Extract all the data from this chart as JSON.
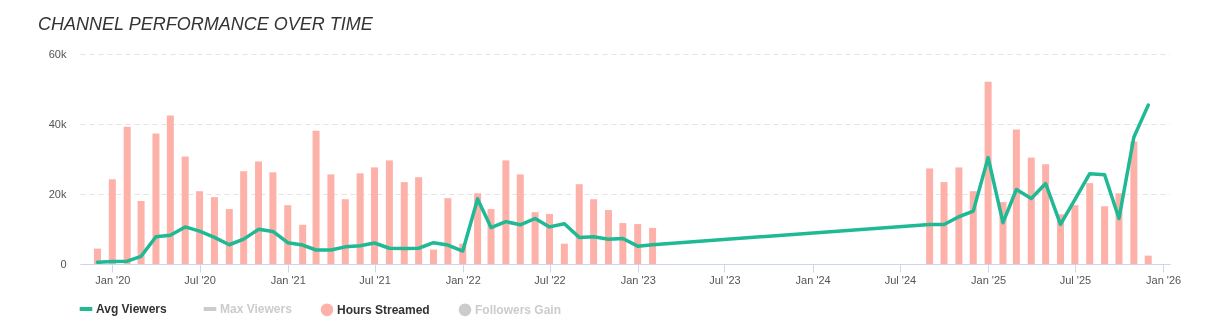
{
  "chart_data": {
    "type": "bar",
    "title": "CHANNEL PERFORMANCE OVER TIME",
    "x": [
      "2019-12",
      "2020-01",
      "2020-02",
      "2020-03",
      "2020-04",
      "2020-05",
      "2020-06",
      "2020-07",
      "2020-08",
      "2020-09",
      "2020-10",
      "2020-11",
      "2020-12",
      "2021-01",
      "2021-02",
      "2021-03",
      "2021-04",
      "2021-05",
      "2021-06",
      "2021-07",
      "2021-08",
      "2021-09",
      "2021-10",
      "2021-11",
      "2021-12",
      "2022-01",
      "2022-02",
      "2022-03",
      "2022-04",
      "2022-05",
      "2022-06",
      "2022-07",
      "2022-08",
      "2022-09",
      "2022-10",
      "2022-11",
      "2022-12",
      "2023-01",
      "2023-02",
      "2024-09",
      "2024-10",
      "2024-11",
      "2024-12",
      "2025-01",
      "2025-02",
      "2025-03",
      "2025-04",
      "2025-05",
      "2025-06",
      "2025-07",
      "2025-08",
      "2025-09",
      "2025-10",
      "2025-11",
      "2025-12"
    ],
    "series": [
      {
        "name": "Avg Viewers",
        "type": "line",
        "color": "#1fb994",
        "values": [
          500,
          700,
          800,
          2200,
          7800,
          8200,
          10600,
          9400,
          7600,
          5500,
          7100,
          9900,
          9300,
          6100,
          5400,
          4000,
          4000,
          4900,
          5200,
          6000,
          4500,
          4400,
          4500,
          6100,
          5400,
          3700,
          18600,
          10400,
          12100,
          11200,
          13000,
          10600,
          11500,
          7600,
          7800,
          7100,
          7300,
          5100,
          5500,
          11300,
          11300,
          13500,
          15100,
          30400,
          11800,
          21300,
          18700,
          23000,
          11300,
          18400,
          25800,
          25500,
          13000,
          36200,
          45400
        ]
      },
      {
        "name": "Max Viewers",
        "type": "line",
        "color": "#cccccc",
        "values": [
          null,
          null,
          null,
          null,
          null,
          null,
          null,
          null,
          null,
          null,
          null,
          null,
          null,
          null,
          null,
          null,
          null,
          null,
          null,
          null,
          null,
          null,
          null,
          null,
          null,
          null,
          null,
          null,
          null,
          null,
          null,
          null,
          null,
          null,
          null,
          null,
          null,
          null,
          null,
          null,
          null,
          null,
          null,
          null,
          null,
          null,
          null,
          null,
          null,
          null,
          null,
          null,
          null,
          null,
          null
        ]
      },
      {
        "name": "Hours Streamed",
        "color": "#fdb1a9",
        "values": [
          4400,
          24200,
          39200,
          18000,
          37300,
          42400,
          30700,
          20800,
          19100,
          15700,
          26500,
          29300,
          26200,
          16800,
          11200,
          38100,
          25600,
          18500,
          25900,
          27600,
          29600,
          23400,
          24800,
          4100,
          18800,
          5800,
          20200,
          15700,
          29600,
          25600,
          14800,
          14300,
          5800,
          22800,
          18500,
          15400,
          11700,
          11400,
          10300,
          27300,
          23400,
          27600,
          20800,
          52100,
          17700,
          38400,
          30400,
          28500,
          14200,
          16800,
          23100,
          16500,
          20200,
          35000,
          2400
        ]
      },
      {
        "name": "Followers Gain",
        "color": "#cccccc",
        "values": [
          null,
          null,
          null,
          null,
          null,
          null,
          null,
          null,
          null,
          null,
          null,
          null,
          null,
          null,
          null,
          null,
          null,
          null,
          null,
          null,
          null,
          null,
          null,
          null,
          null,
          null,
          null,
          null,
          null,
          null,
          null,
          null,
          null,
          null,
          null,
          null,
          null,
          null,
          null,
          null,
          null,
          null,
          null,
          null,
          null,
          null,
          null,
          null,
          null,
          null,
          null,
          null,
          null,
          null,
          null
        ]
      }
    ],
    "xlim": [
      "2019-11-05",
      "2026-01-05"
    ],
    "xticks": [
      {
        "value": "2020-01",
        "label": "Jan '20"
      },
      {
        "value": "2020-07",
        "label": "Jul '20"
      },
      {
        "value": "2021-01",
        "label": "Jan '21"
      },
      {
        "value": "2021-07",
        "label": "Jul '21"
      },
      {
        "value": "2022-01",
        "label": "Jan '22"
      },
      {
        "value": "2022-07",
        "label": "Jul '22"
      },
      {
        "value": "2023-01",
        "label": "Jan '23"
      },
      {
        "value": "2023-07",
        "label": "Jul '23"
      },
      {
        "value": "2024-01",
        "label": "Jan '24"
      },
      {
        "value": "2024-07",
        "label": "Jul '24"
      },
      {
        "value": "2025-01",
        "label": "Jan '25"
      },
      {
        "value": "2025-07",
        "label": "Jul '25"
      },
      {
        "value": "2026-01",
        "label": "Jan '26"
      }
    ],
    "ylim": [
      0,
      60000
    ],
    "yticks": [
      0,
      {
        "value": 20000,
        "label": "20k"
      },
      {
        "value": 40000,
        "label": "40k"
      },
      {
        "value": 60000,
        "label": "60k"
      }
    ],
    "grid": "y",
    "legend": "bottom"
  }
}
